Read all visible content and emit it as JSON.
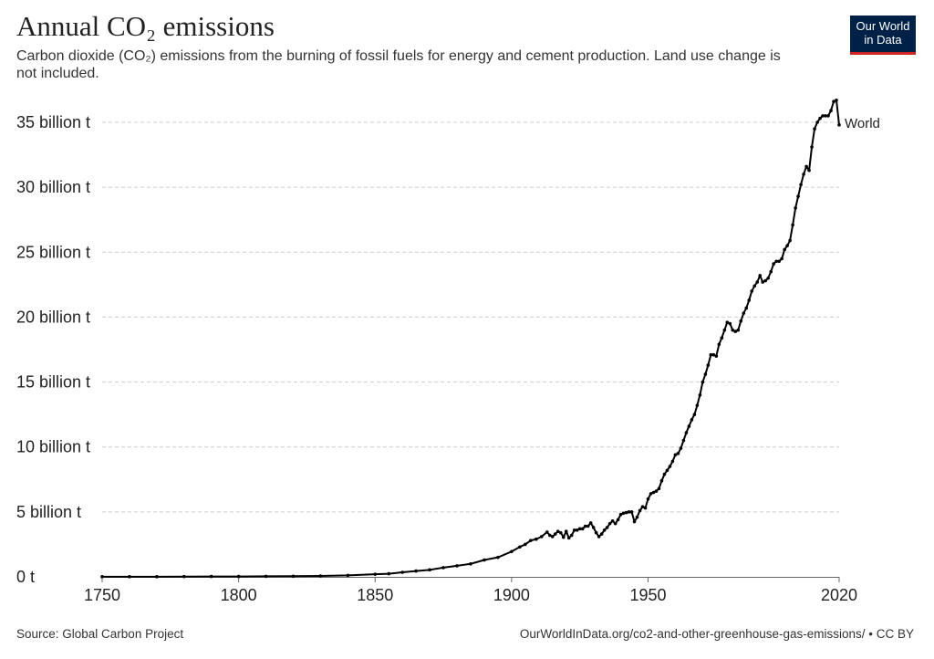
{
  "header": {
    "title": "Annual CO₂ emissions",
    "subtitle": "Carbon dioxide (CO₂) emissions from the burning of fossil fuels for energy and cement production. Land use change is not included.",
    "logo_line1": "Our World",
    "logo_line2": "in Data"
  },
  "footer": {
    "source": "Source: Global Carbon Project",
    "url": "OurWorldInData.org/co2-and-other-greenhouse-gas-emissions/ • CC BY"
  },
  "colors": {
    "line": "#000000",
    "grid": "#cccccc",
    "logo_bg": "#002147",
    "logo_accent": "#ce261e"
  },
  "chart_data": {
    "type": "line",
    "title": "Annual CO₂ emissions",
    "xlabel": "",
    "ylabel": "",
    "xlim": [
      1750,
      2020
    ],
    "ylim": [
      0,
      35000000000
    ],
    "x_ticks": [
      {
        "value": 1750,
        "label": "1750"
      },
      {
        "value": 1800,
        "label": "1800"
      },
      {
        "value": 1850,
        "label": "1850"
      },
      {
        "value": 1900,
        "label": "1900"
      },
      {
        "value": 1950,
        "label": "1950"
      },
      {
        "value": 2020,
        "label": "2020"
      }
    ],
    "y_ticks": [
      {
        "value": 0,
        "label": "0 t"
      },
      {
        "value": 5000000000,
        "label": "5 billion t"
      },
      {
        "value": 10000000000,
        "label": "10 billion t"
      },
      {
        "value": 15000000000,
        "label": "15 billion t"
      },
      {
        "value": 20000000000,
        "label": "20 billion t"
      },
      {
        "value": 25000000000,
        "label": "25 billion t"
      },
      {
        "value": 30000000000,
        "label": "30 billion t"
      },
      {
        "value": 35000000000,
        "label": "35 billion t"
      }
    ],
    "grid": true,
    "series": [
      {
        "name": "World",
        "unit": "billion t",
        "points": [
          [
            1750,
            0.01
          ],
          [
            1760,
            0.01
          ],
          [
            1770,
            0.01
          ],
          [
            1780,
            0.02
          ],
          [
            1790,
            0.03
          ],
          [
            1800,
            0.03
          ],
          [
            1810,
            0.04
          ],
          [
            1820,
            0.05
          ],
          [
            1830,
            0.07
          ],
          [
            1840,
            0.11
          ],
          [
            1850,
            0.2
          ],
          [
            1855,
            0.24
          ],
          [
            1860,
            0.35
          ],
          [
            1865,
            0.45
          ],
          [
            1870,
            0.54
          ],
          [
            1875,
            0.71
          ],
          [
            1880,
            0.85
          ],
          [
            1885,
            1.0
          ],
          [
            1890,
            1.3
          ],
          [
            1895,
            1.5
          ],
          [
            1900,
            1.95
          ],
          [
            1903,
            2.3
          ],
          [
            1905,
            2.5
          ],
          [
            1907,
            2.8
          ],
          [
            1909,
            2.9
          ],
          [
            1911,
            3.1
          ],
          [
            1913,
            3.45
          ],
          [
            1914,
            3.2
          ],
          [
            1915,
            3.1
          ],
          [
            1916,
            3.3
          ],
          [
            1917,
            3.5
          ],
          [
            1918,
            3.4
          ],
          [
            1919,
            3.05
          ],
          [
            1920,
            3.5
          ],
          [
            1921,
            3.0
          ],
          [
            1922,
            3.2
          ],
          [
            1923,
            3.6
          ],
          [
            1924,
            3.6
          ],
          [
            1925,
            3.7
          ],
          [
            1926,
            3.7
          ],
          [
            1927,
            3.9
          ],
          [
            1928,
            3.9
          ],
          [
            1929,
            4.15
          ],
          [
            1930,
            3.8
          ],
          [
            1931,
            3.4
          ],
          [
            1932,
            3.1
          ],
          [
            1933,
            3.3
          ],
          [
            1934,
            3.6
          ],
          [
            1935,
            3.8
          ],
          [
            1936,
            4.1
          ],
          [
            1937,
            4.3
          ],
          [
            1938,
            4.1
          ],
          [
            1939,
            4.4
          ],
          [
            1940,
            4.8
          ],
          [
            1941,
            4.9
          ],
          [
            1942,
            4.95
          ],
          [
            1943,
            5.0
          ],
          [
            1944,
            5.0
          ],
          [
            1945,
            4.25
          ],
          [
            1946,
            4.6
          ],
          [
            1947,
            5.1
          ],
          [
            1948,
            5.4
          ],
          [
            1949,
            5.3
          ],
          [
            1950,
            6.0
          ],
          [
            1951,
            6.4
          ],
          [
            1952,
            6.5
          ],
          [
            1953,
            6.6
          ],
          [
            1954,
            6.8
          ],
          [
            1955,
            7.4
          ],
          [
            1956,
            7.9
          ],
          [
            1957,
            8.2
          ],
          [
            1958,
            8.5
          ],
          [
            1959,
            8.9
          ],
          [
            1960,
            9.4
          ],
          [
            1961,
            9.5
          ],
          [
            1962,
            9.9
          ],
          [
            1963,
            10.5
          ],
          [
            1964,
            11.1
          ],
          [
            1965,
            11.6
          ],
          [
            1966,
            12.1
          ],
          [
            1967,
            12.5
          ],
          [
            1968,
            13.2
          ],
          [
            1969,
            14.0
          ],
          [
            1970,
            15.0
          ],
          [
            1971,
            15.6
          ],
          [
            1972,
            16.3
          ],
          [
            1973,
            17.1
          ],
          [
            1974,
            17.1
          ],
          [
            1975,
            17.0
          ],
          [
            1976,
            17.9
          ],
          [
            1977,
            18.4
          ],
          [
            1978,
            19.0
          ],
          [
            1979,
            19.6
          ],
          [
            1980,
            19.5
          ],
          [
            1981,
            19.0
          ],
          [
            1982,
            18.9
          ],
          [
            1983,
            19.0
          ],
          [
            1984,
            19.7
          ],
          [
            1985,
            20.3
          ],
          [
            1986,
            20.7
          ],
          [
            1987,
            21.3
          ],
          [
            1988,
            22.0
          ],
          [
            1989,
            22.4
          ],
          [
            1990,
            22.7
          ],
          [
            1991,
            23.2
          ],
          [
            1992,
            22.7
          ],
          [
            1993,
            22.8
          ],
          [
            1994,
            23.0
          ],
          [
            1995,
            23.5
          ],
          [
            1996,
            24.1
          ],
          [
            1997,
            24.3
          ],
          [
            1998,
            24.3
          ],
          [
            1999,
            24.5
          ],
          [
            2000,
            25.2
          ],
          [
            2001,
            25.5
          ],
          [
            2002,
            25.9
          ],
          [
            2003,
            27.1
          ],
          [
            2004,
            28.4
          ],
          [
            2005,
            29.3
          ],
          [
            2006,
            30.2
          ],
          [
            2007,
            31.0
          ],
          [
            2008,
            31.6
          ],
          [
            2009,
            31.3
          ],
          [
            2010,
            33.1
          ],
          [
            2011,
            34.5
          ],
          [
            2012,
            35.0
          ],
          [
            2013,
            35.3
          ],
          [
            2014,
            35.5
          ],
          [
            2015,
            35.5
          ],
          [
            2016,
            35.5
          ],
          [
            2017,
            35.9
          ],
          [
            2018,
            36.6
          ],
          [
            2019,
            36.7
          ],
          [
            2020,
            34.8
          ]
        ]
      }
    ]
  }
}
